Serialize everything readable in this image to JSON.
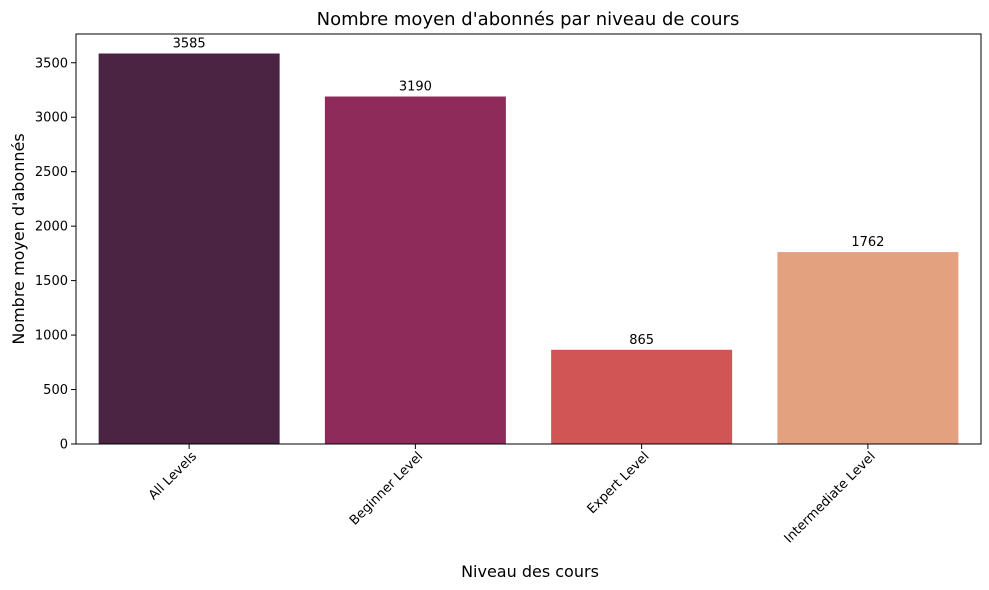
{
  "chart_data": {
    "type": "bar",
    "title": "Nombre moyen d'abonnés par niveau de cours",
    "xlabel": "Niveau des cours",
    "ylabel": "Nombre moyen d'abonnés",
    "categories": [
      "All Levels",
      "Beginner Level",
      "Expert Level",
      "Intermediate Level"
    ],
    "values": [
      3585,
      3190,
      865,
      1762
    ],
    "data_labels": [
      "3585",
      "3190",
      "865",
      "1762"
    ],
    "colors": [
      "#4a2442",
      "#8e2b5a",
      "#d15555",
      "#e3a17f"
    ],
    "ylim": [
      0,
      3764
    ],
    "yticks": [
      0,
      500,
      1000,
      1500,
      2000,
      2500,
      3000,
      3500
    ],
    "ytick_labels": [
      "0",
      "500",
      "1000",
      "1500",
      "2000",
      "2500",
      "3000",
      "3500"
    ],
    "xtick_rotation": 45,
    "grid": false,
    "legend": "none"
  }
}
